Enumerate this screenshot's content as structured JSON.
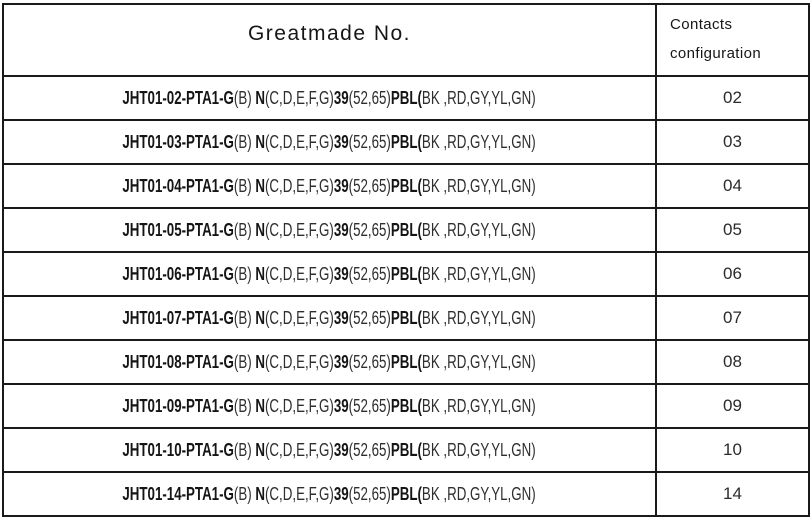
{
  "colors": {
    "border": "#1a1a1a",
    "text": "#1f1f1f"
  },
  "header": {
    "greatmade_label": "Greatmade No.",
    "contacts_label_line1": "Contacts",
    "contacts_label_line2": "configuration"
  },
  "rows": [
    {
      "contacts": "02",
      "part_segments": [
        {
          "bold": true,
          "text": "JHT01-02-PTA1-G"
        },
        {
          "bold": false,
          "text": "(B) "
        },
        {
          "bold": true,
          "text": "N"
        },
        {
          "bold": false,
          "text": "(C,D,E,F,G)"
        },
        {
          "bold": true,
          "text": "39"
        },
        {
          "bold": false,
          "text": "(52,65)"
        },
        {
          "bold": true,
          "text": "PBL("
        },
        {
          "bold": false,
          "text": "BK ,RD,GY,YL,GN)"
        }
      ]
    },
    {
      "contacts": "03",
      "part_segments": [
        {
          "bold": true,
          "text": "JHT01-03-PTA1-G"
        },
        {
          "bold": false,
          "text": "(B) "
        },
        {
          "bold": true,
          "text": "N"
        },
        {
          "bold": false,
          "text": "(C,D,E,F,G)"
        },
        {
          "bold": true,
          "text": "39"
        },
        {
          "bold": false,
          "text": "(52,65)"
        },
        {
          "bold": true,
          "text": "PBL("
        },
        {
          "bold": false,
          "text": "BK ,RD,GY,YL,GN)"
        }
      ]
    },
    {
      "contacts": "04",
      "part_segments": [
        {
          "bold": true,
          "text": "JHT01-04-PTA1-G"
        },
        {
          "bold": false,
          "text": "(B) "
        },
        {
          "bold": true,
          "text": "N"
        },
        {
          "bold": false,
          "text": "(C,D,E,F,G)"
        },
        {
          "bold": true,
          "text": "39"
        },
        {
          "bold": false,
          "text": "(52,65)"
        },
        {
          "bold": true,
          "text": "PBL("
        },
        {
          "bold": false,
          "text": "BK ,RD,GY,YL,GN)"
        }
      ]
    },
    {
      "contacts": "05",
      "part_segments": [
        {
          "bold": true,
          "text": "JHT01-05-PTA1-G"
        },
        {
          "bold": false,
          "text": "(B) "
        },
        {
          "bold": true,
          "text": "N"
        },
        {
          "bold": false,
          "text": "(C,D,E,F,G)"
        },
        {
          "bold": true,
          "text": "39"
        },
        {
          "bold": false,
          "text": "(52,65)"
        },
        {
          "bold": true,
          "text": "PBL("
        },
        {
          "bold": false,
          "text": "BK ,RD,GY,YL,GN)"
        }
      ]
    },
    {
      "contacts": "06",
      "part_segments": [
        {
          "bold": true,
          "text": "JHT01-06-PTA1-G"
        },
        {
          "bold": false,
          "text": "(B) "
        },
        {
          "bold": true,
          "text": "N"
        },
        {
          "bold": false,
          "text": "(C,D,E,F,G)"
        },
        {
          "bold": true,
          "text": "39"
        },
        {
          "bold": false,
          "text": "(52,65)"
        },
        {
          "bold": true,
          "text": "PBL("
        },
        {
          "bold": false,
          "text": "BK ,RD,GY,YL,GN)"
        }
      ]
    },
    {
      "contacts": "07",
      "part_segments": [
        {
          "bold": true,
          "text": "JHT01-07-PTA1-G"
        },
        {
          "bold": false,
          "text": "(B) "
        },
        {
          "bold": true,
          "text": "N"
        },
        {
          "bold": false,
          "text": "(C,D,E,F,G)"
        },
        {
          "bold": true,
          "text": "39"
        },
        {
          "bold": false,
          "text": "(52,65)"
        },
        {
          "bold": true,
          "text": "PBL("
        },
        {
          "bold": false,
          "text": "BK ,RD,GY,YL,GN)"
        }
      ]
    },
    {
      "contacts": "08",
      "part_segments": [
        {
          "bold": true,
          "text": "JHT01-08-PTA1-G"
        },
        {
          "bold": false,
          "text": "(B) "
        },
        {
          "bold": true,
          "text": "N"
        },
        {
          "bold": false,
          "text": "(C,D,E,F,G)"
        },
        {
          "bold": true,
          "text": "39"
        },
        {
          "bold": false,
          "text": "(52,65)"
        },
        {
          "bold": true,
          "text": "PBL("
        },
        {
          "bold": false,
          "text": "BK ,RD,GY,YL,GN)"
        }
      ]
    },
    {
      "contacts": "09",
      "part_segments": [
        {
          "bold": true,
          "text": "JHT01-09-PTA1-G"
        },
        {
          "bold": false,
          "text": "(B) "
        },
        {
          "bold": true,
          "text": "N"
        },
        {
          "bold": false,
          "text": "(C,D,E,F,G)"
        },
        {
          "bold": true,
          "text": "39"
        },
        {
          "bold": false,
          "text": "(52,65)"
        },
        {
          "bold": true,
          "text": "PBL("
        },
        {
          "bold": false,
          "text": "BK ,RD,GY,YL,GN)"
        }
      ]
    },
    {
      "contacts": "10",
      "part_segments": [
        {
          "bold": true,
          "text": "JHT01-10-PTA1-G"
        },
        {
          "bold": false,
          "text": "(B) "
        },
        {
          "bold": true,
          "text": "N"
        },
        {
          "bold": false,
          "text": "(C,D,E,F,G)"
        },
        {
          "bold": true,
          "text": "39"
        },
        {
          "bold": false,
          "text": "(52,65)"
        },
        {
          "bold": true,
          "text": "PBL("
        },
        {
          "bold": false,
          "text": "BK ,RD,GY,YL,GN)"
        }
      ]
    },
    {
      "contacts": "14",
      "part_segments": [
        {
          "bold": true,
          "text": "JHT01-14-PTA1-G"
        },
        {
          "bold": false,
          "text": "(B) "
        },
        {
          "bold": true,
          "text": "N"
        },
        {
          "bold": false,
          "text": "(C,D,E,F,G)"
        },
        {
          "bold": true,
          "text": "39"
        },
        {
          "bold": false,
          "text": "(52,65)"
        },
        {
          "bold": true,
          "text": "PBL("
        },
        {
          "bold": false,
          "text": "BK ,RD,GY,YL,GN)"
        }
      ]
    }
  ]
}
